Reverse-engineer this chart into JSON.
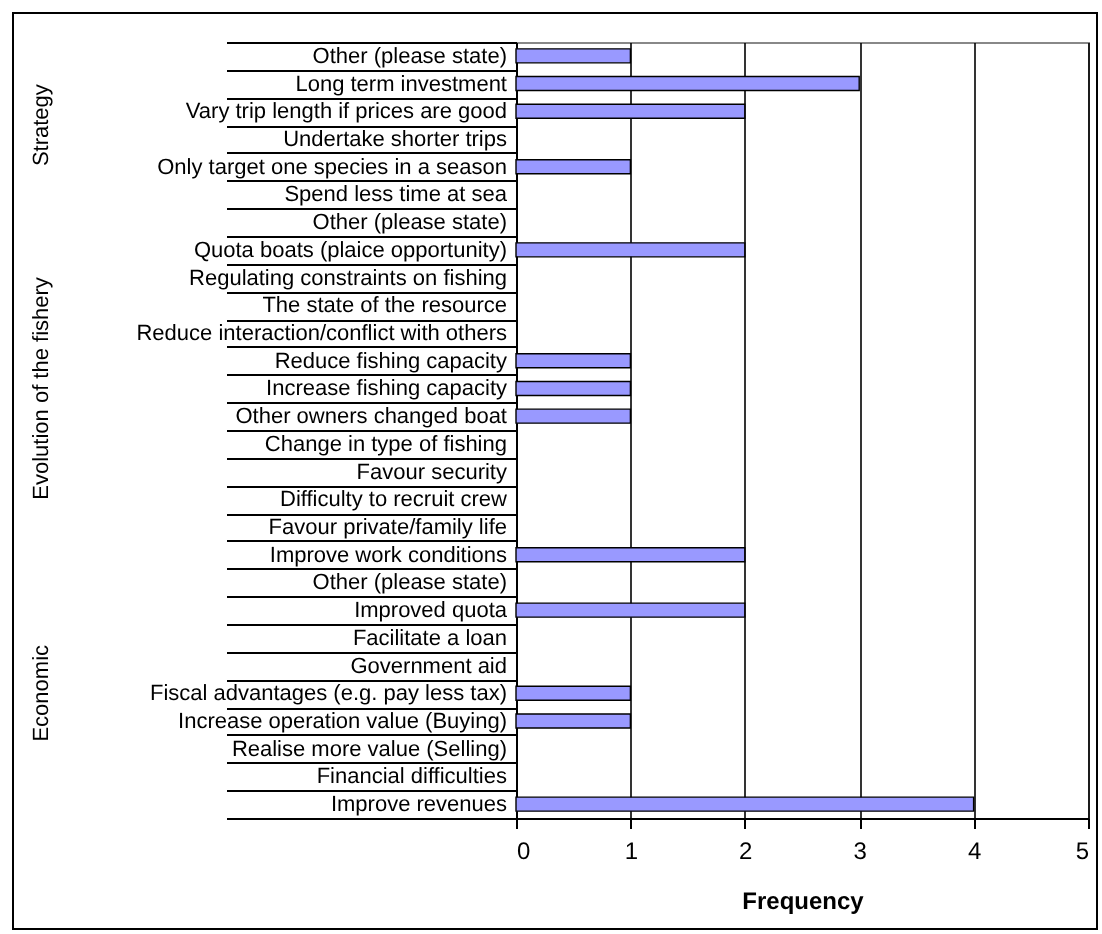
{
  "chart_data": {
    "type": "bar",
    "orientation": "horizontal",
    "xlabel": "Frequency",
    "color": "#9999ff",
    "categories": [
      "Other (please state)",
      "Long term investment",
      "Vary trip length if prices are good",
      "Undertake shorter trips",
      "Only target one species in a season",
      "Spend less time at sea",
      "Other (please state)",
      "Quota boats (plaice opportunity)",
      "Regulating constraints on fishing",
      "The state of the resource",
      "Reduce interaction/conflict with others",
      "Reduce fishing capacity",
      "Increase fishing capacity",
      "Other owners changed boat",
      "Change in type of fishing",
      "Favour security",
      "Difficulty to recruit crew",
      "Favour private/family life",
      "Improve work conditions",
      "Other (please state)",
      "Improved quota",
      "Facilitate a loan",
      "Government aid",
      "Fiscal advantages (e.g. pay less tax)",
      "Increase operation value (Buying)",
      "Realise more value (Selling)",
      "Financial difficulties",
      "Improve revenues"
    ],
    "values": [
      1,
      3,
      2,
      0,
      1,
      0,
      0,
      2,
      0,
      0,
      0,
      1,
      1,
      1,
      0,
      0,
      0,
      0,
      2,
      0,
      2,
      0,
      0,
      1,
      1,
      0,
      0,
      4
    ],
    "xlim": [
      0,
      5
    ],
    "xticks": [
      0,
      1,
      2,
      3,
      4,
      5
    ],
    "grid": "x",
    "annotations": [
      "Strategy",
      "Evolution of the fishery",
      "Economic"
    ]
  }
}
